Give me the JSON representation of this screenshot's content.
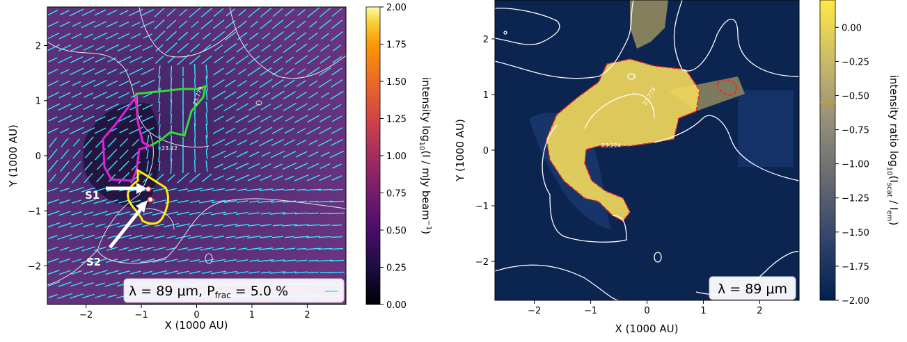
{
  "chart_data": [
    {
      "type": "heatmap",
      "xlabel": "X (1000 AU)",
      "ylabel": "Y (1000 AU)",
      "xlim": [
        -2.7,
        2.7
      ],
      "ylim": [
        -2.7,
        2.7
      ],
      "xticks": [
        -2,
        -1,
        0,
        1,
        2
      ],
      "yticks": [
        -2,
        -1,
        0,
        1,
        2
      ],
      "colorbar": {
        "label_pre": "intensity log",
        "label_sub": "10",
        "label_post": "(I / mJy beam",
        "label_sup": "−1",
        "label_end": ")",
        "ticks": [
          "0.00",
          "0.25",
          "0.50",
          "0.75",
          "1.00",
          "1.25",
          "1.50",
          "1.75",
          "2.00"
        ],
        "range": [
          0,
          2
        ],
        "colormap": "inferno"
      },
      "contour_labels": [
        "23.22",
        "23.779"
      ],
      "markers": [
        "S1",
        "S2"
      ],
      "legend": {
        "lambda_text": "λ = 89 μm, P",
        "frac_sub": "frac",
        "frac_text": " = 5.0 %",
        "position": "bottom-right"
      },
      "colors": {
        "vectors": "#33e6ff",
        "contour": "#e8e8e8",
        "region_green": "#33dd33",
        "region_magenta": "#dd22dd",
        "region_yellow": "#ffee00",
        "background": "#5a2e73"
      }
    },
    {
      "type": "heatmap",
      "xlabel": "X (1000 AU)",
      "ylabel": "Y (1000 AU)",
      "xlim": [
        -2.7,
        2.7
      ],
      "ylim": [
        -2.7,
        2.7
      ],
      "xticks": [
        -2,
        -1,
        0,
        1,
        2
      ],
      "yticks": [
        -2,
        -1,
        0,
        1,
        2
      ],
      "colorbar": {
        "label_pre": "intensity ratio  log",
        "label_sub": "10",
        "label_post": "(I",
        "label_sub2": "scat",
        "label_mid": " / I",
        "label_sub3": "em",
        "label_end": ")",
        "ticks": [
          "0.00",
          "−0.25",
          "−0.50",
          "−0.75",
          "−1.00",
          "−1.25",
          "−1.50",
          "−1.75",
          "−2.00"
        ],
        "range": [
          -2,
          0.2
        ],
        "colormap": "cividis",
        "highlight": -0.55
      },
      "contour_labels": [
        "23.224",
        "23.779"
      ],
      "legend": {
        "lambda_text": "λ = 89 μm",
        "position": "bottom-right"
      },
      "colors": {
        "background": "#0b2450",
        "emission": "#f2dc60",
        "contour": "#ffffff",
        "dashed": "#ff2020"
      }
    }
  ]
}
